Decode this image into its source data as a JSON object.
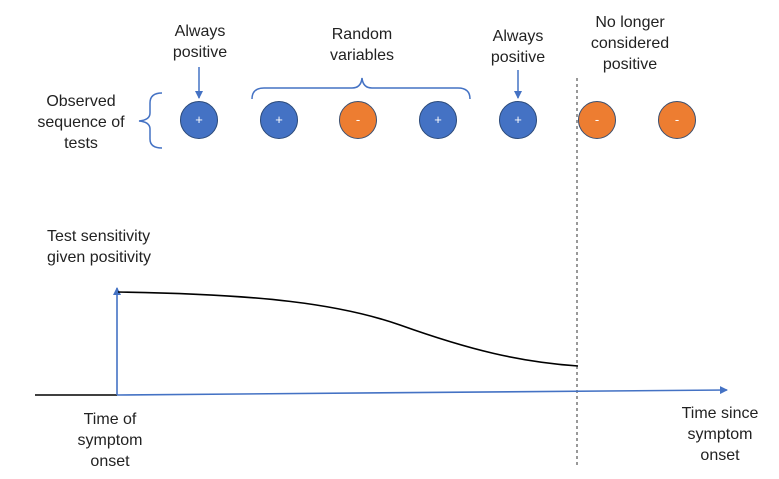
{
  "colors": {
    "positive": "#4472c4",
    "negative": "#ed7d31",
    "axis": "#4472c4",
    "curve": "#000000"
  },
  "top_labels": {
    "always_positive_1": "Always\npositive",
    "random_variables": "Random\nvariables",
    "always_positive_2": "Always\npositive",
    "no_longer_positive": "No longer\nconsidered\npositive",
    "observed_sequence": "Observed\nsequence of\ntests"
  },
  "tests": [
    {
      "symbol": "+",
      "result": "positive"
    },
    {
      "symbol": "+",
      "result": "positive"
    },
    {
      "symbol": "-",
      "result": "negative"
    },
    {
      "symbol": "+",
      "result": "positive"
    },
    {
      "symbol": "+",
      "result": "positive"
    },
    {
      "symbol": "-",
      "result": "negative"
    },
    {
      "symbol": "-",
      "result": "negative"
    }
  ],
  "axes": {
    "y_label": "Test sensitivity\ngiven positivity",
    "onset_label": "Time of\nsymptom\nonset",
    "x_label": "Time since\nsymptom\nonset"
  },
  "icons": {
    "brace": "curly-brace",
    "arrow": "down-arrow"
  }
}
